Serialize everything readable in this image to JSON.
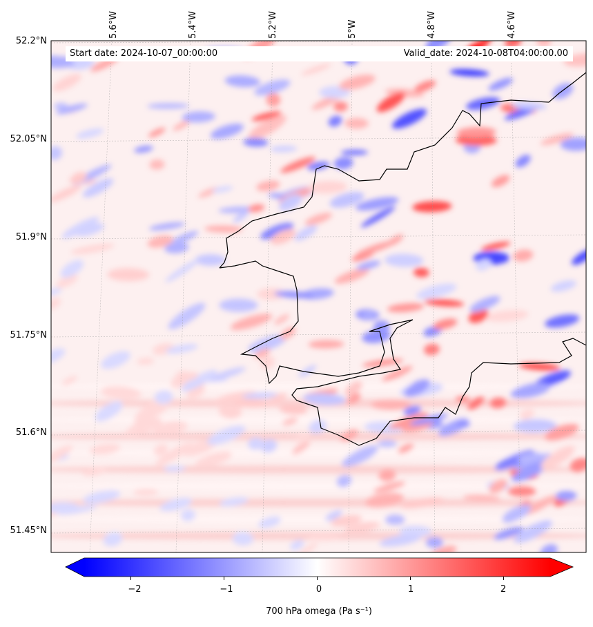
{
  "title": {
    "start_date": "Start date: 2024-10-07_00:00:00",
    "valid_date": "Valid_date: 2024-10-08T04:00:00.00"
  },
  "lon_labels": [
    "5.6°W",
    "5.4°W",
    "5.2°W",
    "5°W",
    "4.8°W",
    "4.6°W"
  ],
  "lat_labels": [
    "52.2°N",
    "52.05°N",
    "51.9°N",
    "51.75°N",
    "51.6°N",
    "51.45°N"
  ],
  "colorbar": {
    "label": "700 hPa omega (Pa s⁻¹)",
    "ticks": [
      "−2",
      "−1",
      "0",
      "1",
      "2"
    ],
    "tick_values": [
      -2,
      -1,
      0,
      1,
      2
    ],
    "range": [
      -2.5,
      2.5
    ],
    "colormap": "bwr",
    "extend": "both",
    "colors": {
      "low": "#0000ff",
      "mid": "#ffffff",
      "high": "#ff0000"
    }
  },
  "chart_data": {
    "type": "heatmap",
    "title": "",
    "variable": "700 hPa omega",
    "units": "Pa s⁻¹",
    "lon_ticks": [
      "5.6°W",
      "5.4°W",
      "5.2°W",
      "5°W",
      "4.8°W",
      "4.6°W"
    ],
    "lat_ticks": [
      "52.2°N",
      "52.05°N",
      "51.9°N",
      "51.75°N",
      "51.6°N",
      "51.45°N"
    ],
    "value_range": [
      -2.5,
      2.5
    ]
  }
}
